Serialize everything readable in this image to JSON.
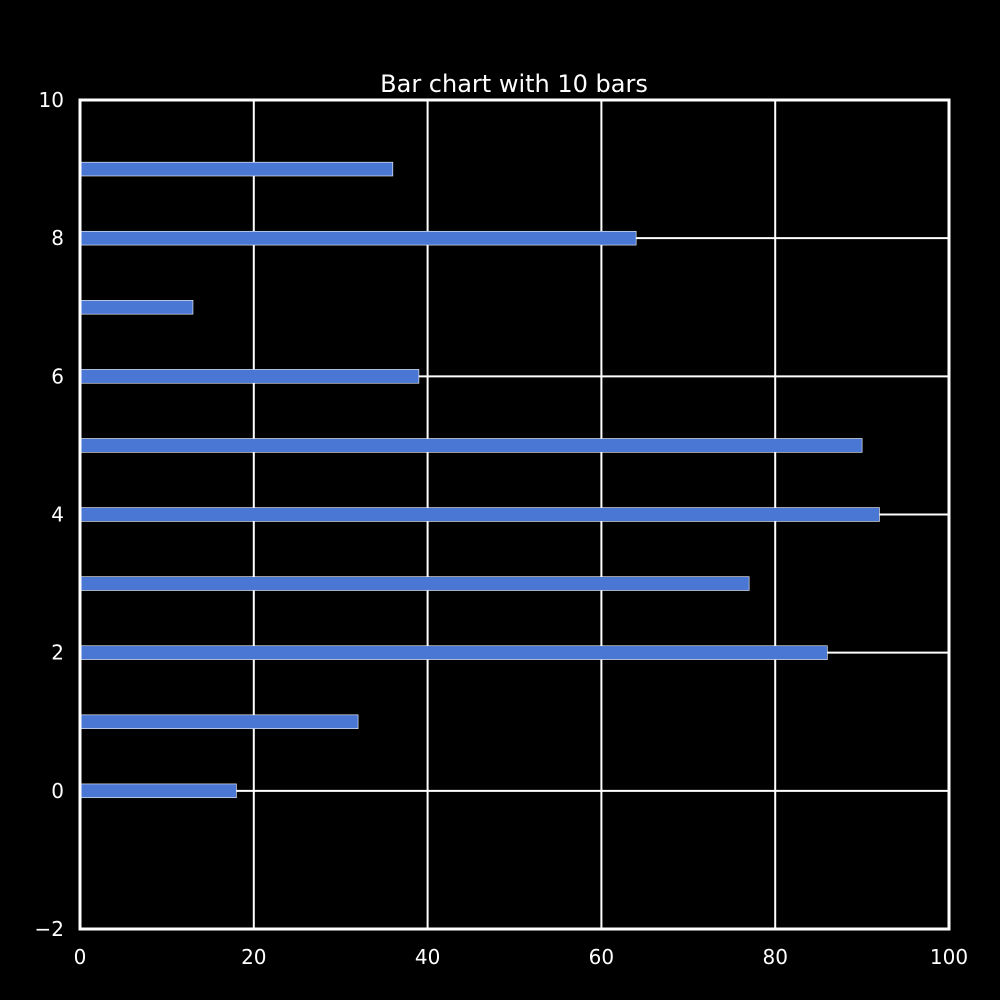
{
  "colors": {
    "background": "#000000",
    "foreground": "#ffffff",
    "bar": "#4a76d4",
    "bar_edge": "#ffffff"
  },
  "chart_data": {
    "type": "bar",
    "orientation": "horizontal",
    "title": "Bar chart with 10 bars",
    "xlabel": "",
    "ylabel": "",
    "categories": [
      0,
      1,
      2,
      3,
      4,
      5,
      6,
      7,
      8,
      9
    ],
    "values": [
      18,
      32,
      86,
      77,
      92,
      90,
      39,
      13,
      64,
      36
    ],
    "bar_height": 0.2,
    "xlim": [
      0,
      100
    ],
    "ylim": [
      -2,
      10
    ],
    "xticks": [
      0,
      20,
      40,
      60,
      80,
      100
    ],
    "xtick_labels": [
      "0",
      "20",
      "40",
      "60",
      "80",
      "100"
    ],
    "yticks": [
      -2,
      0,
      2,
      4,
      6,
      8,
      10
    ],
    "ytick_labels": [
      "−2",
      "0",
      "2",
      "4",
      "6",
      "8",
      "10"
    ],
    "grid": true,
    "legend": "none"
  }
}
